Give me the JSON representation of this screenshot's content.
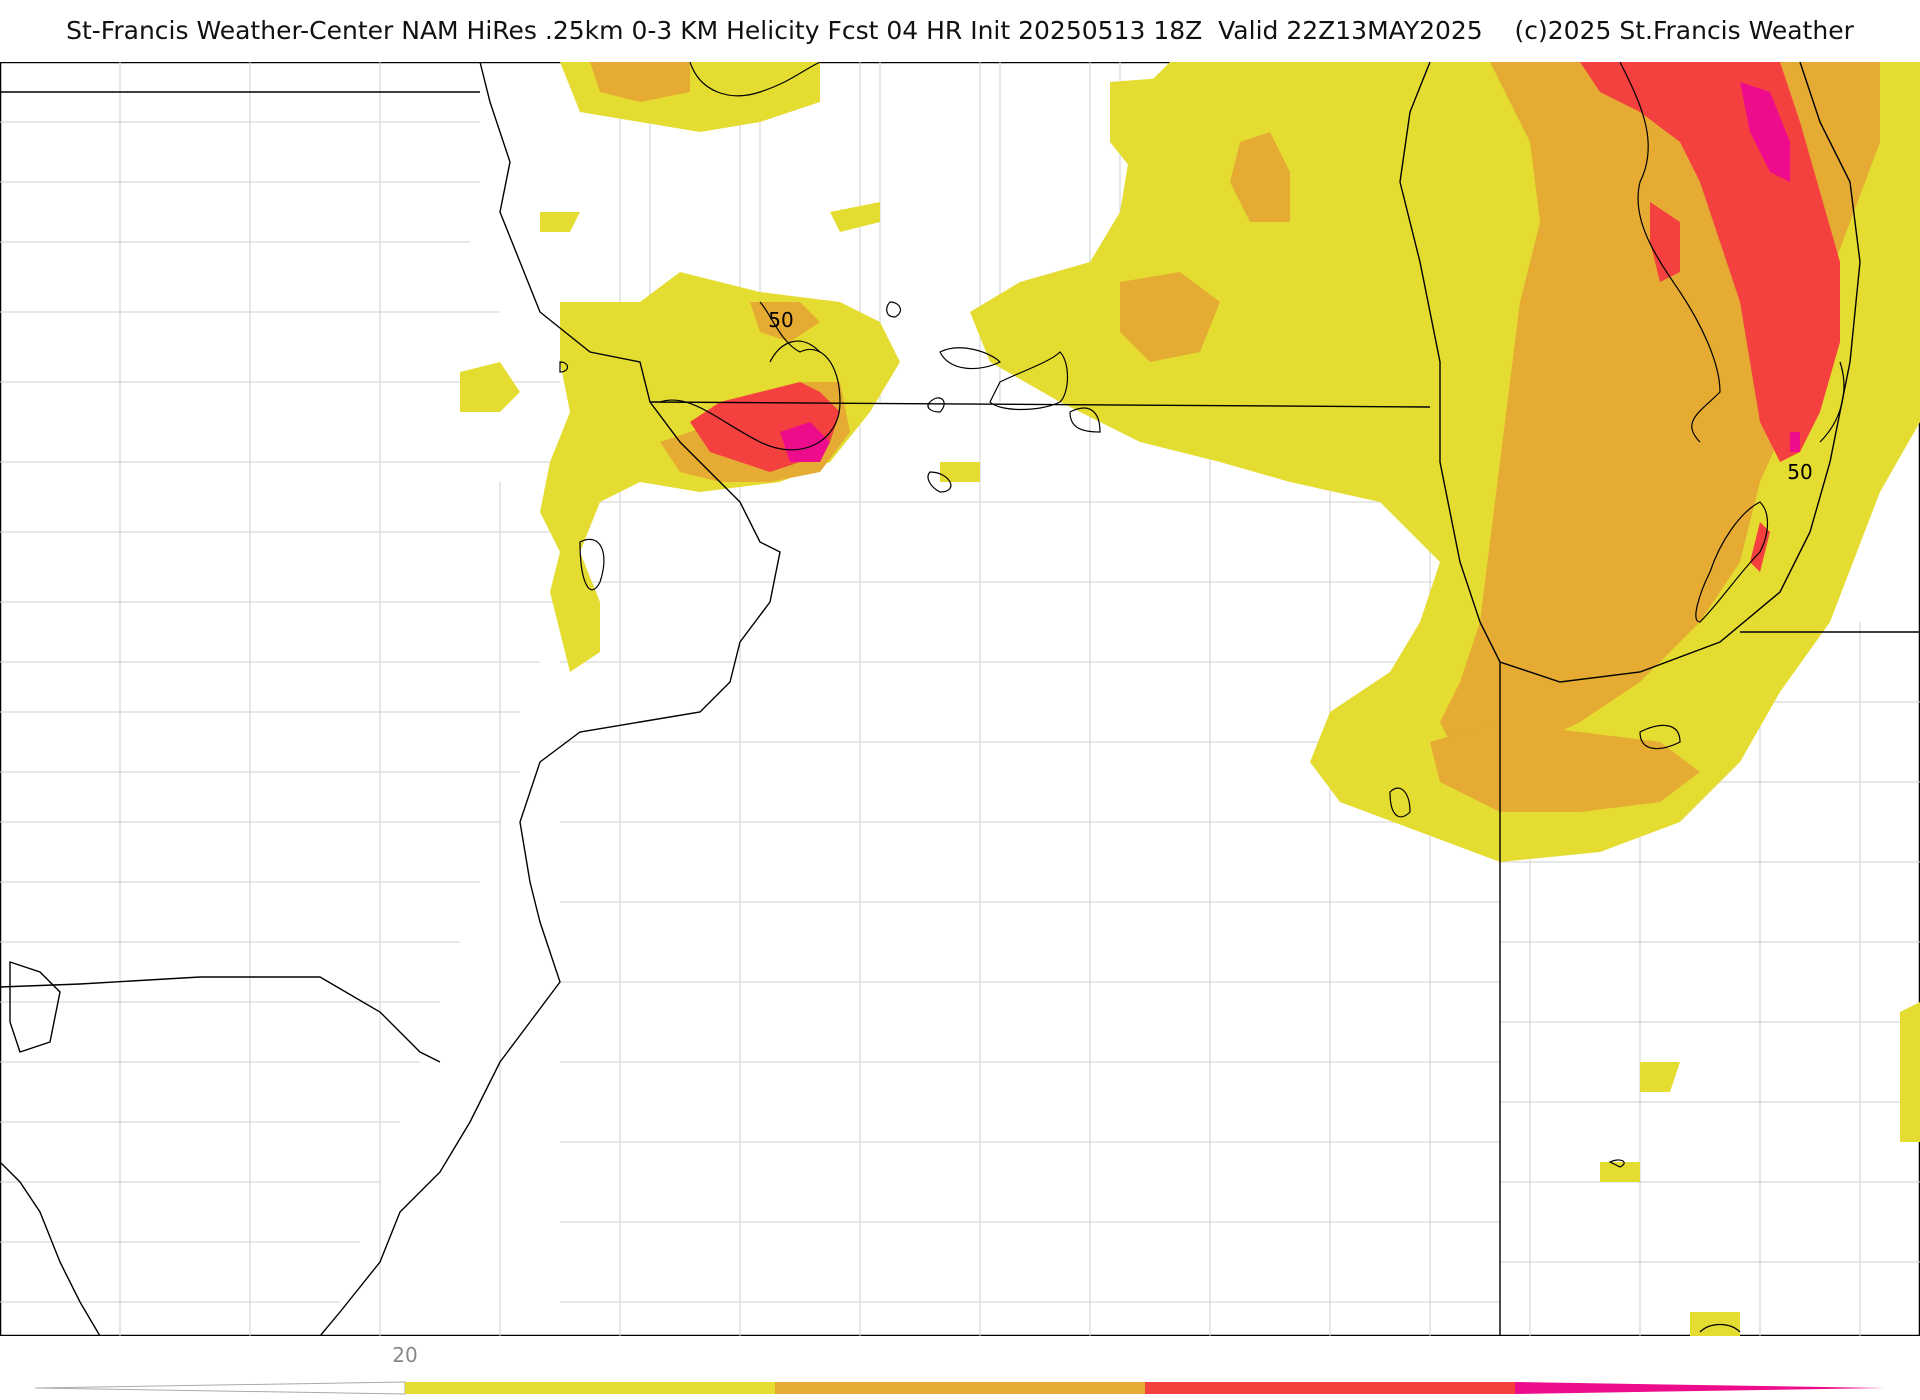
{
  "header": {
    "title": "St-Francis Weather-Center NAM HiRes .25km 0-3 KM Helicity Fcst 04 HR Init 20250513 18Z  Valid 22Z13MAY2025    (c)2025 St.Francis Weather"
  },
  "map": {
    "contour_labels": [
      "50",
      "50"
    ],
    "fill_colors": {
      "level1": "#e5dc32",
      "level2": "#e5ab32",
      "level3": "#f4403f",
      "level4": "#ec0c8c"
    },
    "line_colors": {
      "state": "#000000",
      "county": "#cccccc",
      "contour": "#000000"
    }
  },
  "colorbar": {
    "tick_label": "20",
    "colors": [
      "#e5dc32",
      "#e5ab32",
      "#f4403f",
      "#ec0c8c"
    ]
  }
}
